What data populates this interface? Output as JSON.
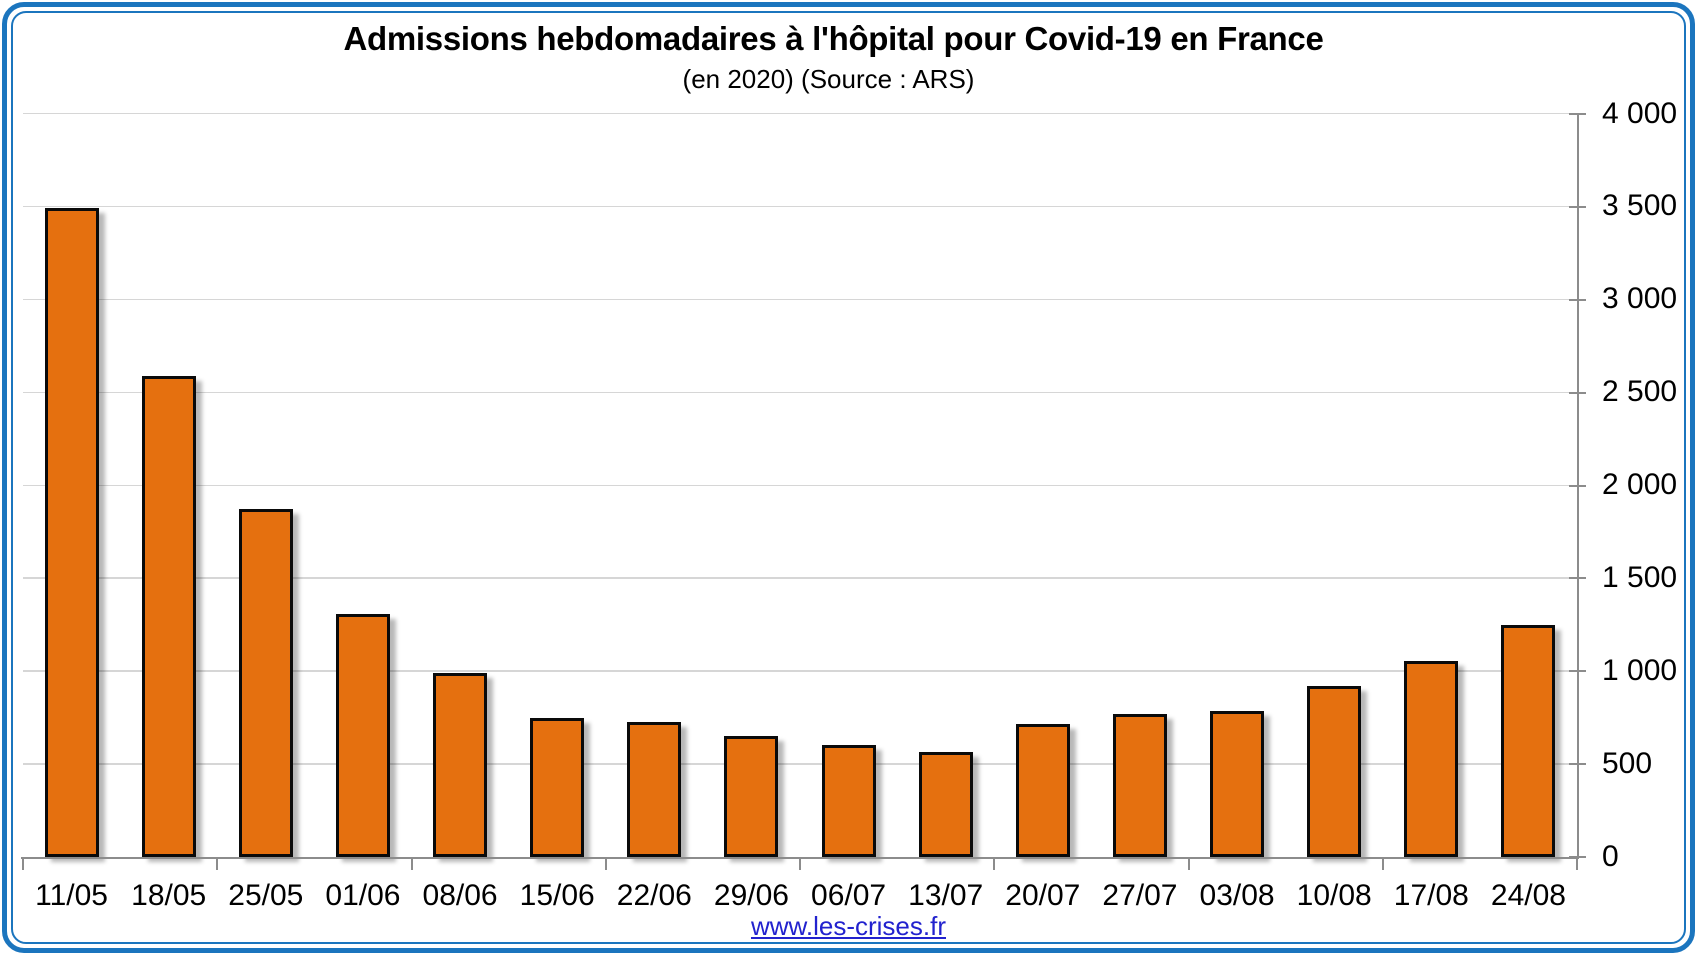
{
  "page": {
    "footer": {
      "link_text": "www.les-crises.fr"
    }
  },
  "colors": {
    "bar_fill": "#E5700F",
    "bar_border": "#0A0A0A",
    "frame_blue": "#1B75BE",
    "gridline": "#D6D6D6",
    "axis": "#8C8C8C",
    "link_blue": "#2222CE",
    "text": "#000000"
  },
  "chart_data": {
    "type": "bar",
    "title": "Admissions hebdomadaires à l'hôpital pour Covid-19 en France",
    "subtitle": "(en 2020) (Source : ARS)",
    "categories": [
      "11/05",
      "18/05",
      "25/05",
      "01/06",
      "08/06",
      "15/06",
      "22/06",
      "29/06",
      "06/07",
      "13/07",
      "20/07",
      "27/07",
      "03/08",
      "10/08",
      "17/08",
      "24/08"
    ],
    "values": [
      3490,
      2590,
      1870,
      1310,
      990,
      750,
      725,
      650,
      600,
      565,
      715,
      770,
      785,
      920,
      1055,
      1250
    ],
    "xlabel": "",
    "ylabel": "",
    "ylim": [
      0,
      4000
    ],
    "ytick_step": 500,
    "ytick_labels": [
      "0",
      "500",
      "1 000",
      "1 500",
      "2 000",
      "2 500",
      "3 000",
      "3 500",
      "4 000"
    ],
    "y_axis_side": "right",
    "grid": true,
    "legend": "none"
  }
}
